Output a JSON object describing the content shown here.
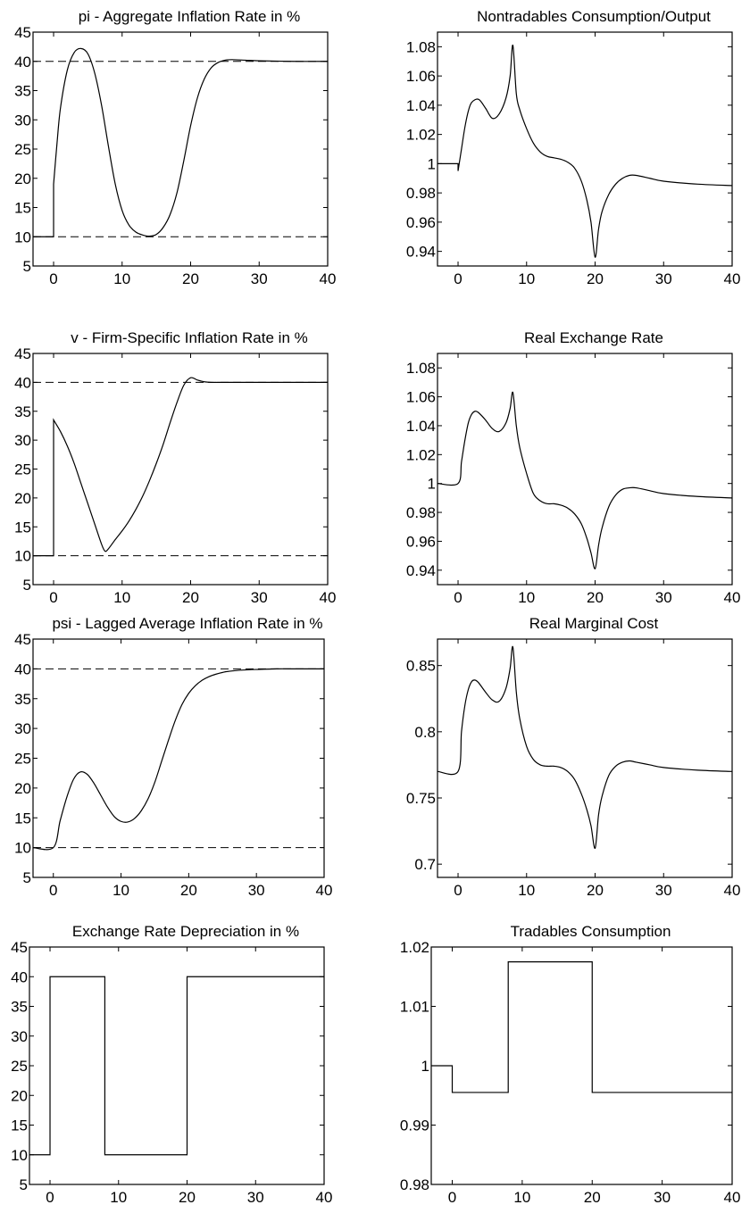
{
  "chart_data": [
    {
      "type": "line",
      "title": "pi - Aggregate Inflation Rate in %",
      "xlim": [
        -3,
        40
      ],
      "ylim": [
        5,
        45
      ],
      "xticks": [
        0,
        10,
        20,
        30,
        40
      ],
      "yticks": [
        5,
        10,
        15,
        20,
        25,
        30,
        35,
        40,
        45
      ],
      "reference_lines": [
        10,
        40
      ],
      "grid": false,
      "series": [
        {
          "x": [
            -3,
            0,
            0,
            0.5,
            1,
            2,
            3,
            4,
            5,
            6,
            7,
            8,
            9,
            10,
            11,
            12,
            13,
            14,
            15,
            16,
            17,
            18,
            19,
            20,
            21,
            22,
            23,
            24,
            25,
            26,
            28,
            30,
            35,
            40
          ],
          "y": [
            10,
            10,
            19,
            26,
            32,
            38.5,
            41.5,
            42.2,
            41.3,
            38,
            32.5,
            25.5,
            19,
            14.5,
            12,
            10.8,
            10.3,
            10.1,
            10.4,
            11.6,
            13.8,
            17.5,
            23,
            29,
            33.8,
            37,
            38.9,
            39.8,
            40.2,
            40.3,
            40.2,
            40.1,
            40,
            40
          ]
        }
      ]
    },
    {
      "type": "line",
      "title": "Nontradables Consumption/Output",
      "xlim": [
        -3,
        40
      ],
      "ylim": [
        0.93,
        1.09
      ],
      "xticks": [
        0,
        10,
        20,
        30,
        40
      ],
      "yticks": [
        0.94,
        0.96,
        0.98,
        1,
        1.02,
        1.04,
        1.06,
        1.08
      ],
      "grid": false,
      "series": [
        {
          "x": [
            -3,
            0,
            0,
            0.5,
            1,
            1.5,
            2,
            3,
            4,
            5,
            6,
            7,
            7.6,
            8,
            8.5,
            9,
            10,
            11,
            12,
            13,
            14,
            15,
            16,
            17,
            18,
            18.8,
            19.4,
            20,
            20.5,
            21,
            22,
            23,
            24,
            25,
            26,
            28,
            30,
            35,
            40
          ],
          "y": [
            1,
            1,
            0.995,
            1.01,
            1.025,
            1.036,
            1.042,
            1.044,
            1.038,
            1.031,
            1.034,
            1.045,
            1.06,
            1.081,
            1.048,
            1.037,
            1.024,
            1.014,
            1.008,
            1.005,
            1.004,
            1.003,
            1.001,
            0.997,
            0.988,
            0.975,
            0.96,
            0.936,
            0.955,
            0.967,
            0.979,
            0.986,
            0.99,
            0.992,
            0.992,
            0.99,
            0.988,
            0.986,
            0.985
          ]
        }
      ]
    },
    {
      "type": "line",
      "title": "v - Firm-Specific Inflation Rate in %",
      "xlim": [
        -3,
        40
      ],
      "ylim": [
        5,
        45
      ],
      "xticks": [
        0,
        10,
        20,
        30,
        40
      ],
      "yticks": [
        5,
        10,
        15,
        20,
        25,
        30,
        35,
        40,
        45
      ],
      "reference_lines": [
        10,
        40
      ],
      "grid": false,
      "series": [
        {
          "x": [
            -3,
            0,
            0,
            1,
            2,
            3,
            4,
            5,
            6,
            7,
            7.5,
            8,
            9,
            10,
            11,
            12,
            13,
            14,
            15,
            16,
            17,
            18,
            19,
            20,
            21,
            22,
            23,
            25,
            30,
            40
          ],
          "y": [
            10,
            10,
            33.5,
            31.5,
            29,
            26,
            22.5,
            19,
            15.5,
            12,
            10.8,
            11.2,
            12.8,
            14.3,
            16,
            18,
            20.3,
            23,
            26,
            29.3,
            33,
            36.5,
            39.5,
            40.8,
            40.4,
            40.1,
            40,
            40,
            40,
            40
          ]
        }
      ]
    },
    {
      "type": "line",
      "title": "Real Exchange Rate",
      "xlim": [
        -3,
        40
      ],
      "ylim": [
        0.93,
        1.09
      ],
      "xticks": [
        0,
        10,
        20,
        30,
        40
      ],
      "yticks": [
        0.94,
        0.96,
        0.98,
        1,
        1.02,
        1.04,
        1.06,
        1.08
      ],
      "grid": false,
      "series": [
        {
          "x": [
            -3,
            0,
            0.5,
            1,
            1.5,
            2,
            2.5,
            3,
            4,
            5,
            6,
            7,
            7.6,
            8,
            8.5,
            9,
            10,
            11,
            12,
            13,
            14,
            15,
            16,
            17,
            18,
            18.8,
            19.4,
            20,
            20.5,
            21,
            22,
            23,
            24,
            25,
            26,
            28,
            30,
            35,
            40
          ],
          "y": [
            1,
            1,
            1.015,
            1.03,
            1.042,
            1.048,
            1.05,
            1.049,
            1.044,
            1.038,
            1.036,
            1.042,
            1.052,
            1.063,
            1.04,
            1.025,
            1.007,
            0.993,
            0.988,
            0.986,
            0.986,
            0.985,
            0.983,
            0.979,
            0.972,
            0.962,
            0.952,
            0.941,
            0.957,
            0.969,
            0.984,
            0.992,
            0.996,
            0.997,
            0.997,
            0.995,
            0.993,
            0.991,
            0.99
          ]
        }
      ]
    },
    {
      "type": "line",
      "title": "psi - Lagged Average Inflation Rate in %",
      "xlim": [
        -3,
        40
      ],
      "ylim": [
        5,
        45
      ],
      "xticks": [
        0,
        10,
        20,
        30,
        40
      ],
      "yticks": [
        5,
        10,
        15,
        20,
        25,
        30,
        35,
        40,
        45
      ],
      "reference_lines": [
        10,
        40
      ],
      "grid": false,
      "series": [
        {
          "x": [
            -3,
            0,
            1,
            2,
            3,
            4,
            5,
            6,
            7,
            8,
            9,
            10,
            11,
            12,
            13,
            14,
            15,
            16,
            17,
            18,
            19,
            20,
            21,
            22,
            23,
            24,
            25,
            26,
            28,
            30,
            33,
            36,
            40
          ],
          "y": [
            10,
            10,
            14.5,
            18.5,
            21.5,
            22.7,
            22.3,
            20.8,
            18.8,
            16.8,
            15.2,
            14.4,
            14.3,
            14.9,
            16.2,
            18.2,
            21,
            24.5,
            28,
            31.3,
            34,
            35.9,
            37.2,
            38.1,
            38.7,
            39.1,
            39.4,
            39.6,
            39.8,
            39.9,
            40,
            40,
            40
          ]
        }
      ]
    },
    {
      "type": "line",
      "title": "Real Marginal Cost",
      "xlim": [
        -3,
        40
      ],
      "ylim": [
        0.69,
        0.87
      ],
      "xticks": [
        0,
        10,
        20,
        30,
        40
      ],
      "yticks": [
        0.7,
        0.75,
        0.8,
        0.85
      ],
      "grid": false,
      "series": [
        {
          "x": [
            -3,
            0,
            0.5,
            1,
            1.5,
            2,
            2.5,
            3,
            4,
            5,
            6,
            7,
            7.6,
            8,
            8.5,
            9,
            10,
            11,
            12,
            13,
            14,
            15,
            16,
            17,
            18,
            18.8,
            19.4,
            20,
            20.5,
            21,
            22,
            23,
            24,
            25,
            26,
            28,
            30,
            35,
            40
          ],
          "y": [
            0.77,
            0.77,
            0.8,
            0.82,
            0.832,
            0.838,
            0.839,
            0.837,
            0.83,
            0.824,
            0.823,
            0.833,
            0.848,
            0.864,
            0.83,
            0.81,
            0.789,
            0.779,
            0.775,
            0.774,
            0.774,
            0.773,
            0.77,
            0.764,
            0.753,
            0.741,
            0.729,
            0.712,
            0.737,
            0.751,
            0.767,
            0.774,
            0.777,
            0.778,
            0.777,
            0.775,
            0.773,
            0.771,
            0.77
          ]
        }
      ]
    },
    {
      "type": "line",
      "title": "Exchange Rate Depreciation in %",
      "xlim": [
        -3,
        40
      ],
      "ylim": [
        5,
        45
      ],
      "xticks": [
        0,
        10,
        20,
        30,
        40
      ],
      "yticks": [
        5,
        10,
        15,
        20,
        25,
        30,
        35,
        40,
        45
      ],
      "grid": false,
      "series": [
        {
          "x": [
            -3,
            0,
            0,
            8,
            8,
            20,
            20,
            40
          ],
          "y": [
            10,
            10,
            40,
            40,
            10,
            10,
            40,
            40
          ]
        }
      ]
    },
    {
      "type": "line",
      "title": "Tradables Consumption",
      "xlim": [
        -3,
        40
      ],
      "ylim": [
        0.98,
        1.02
      ],
      "xticks": [
        0,
        10,
        20,
        30,
        40
      ],
      "yticks": [
        0.98,
        0.99,
        1,
        1.01,
        1.02
      ],
      "grid": false,
      "series": [
        {
          "x": [
            -3,
            0,
            0,
            8,
            8,
            20,
            20,
            40
          ],
          "y": [
            1,
            1,
            0.9955,
            0.9955,
            1.0175,
            1.0175,
            0.9955,
            0.9955
          ]
        }
      ]
    }
  ]
}
